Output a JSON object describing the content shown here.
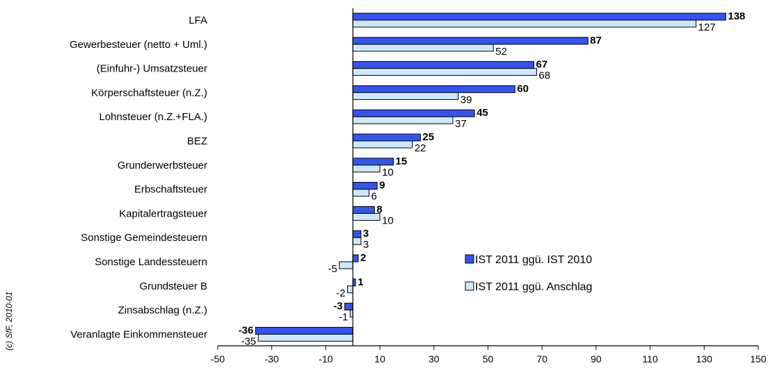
{
  "chart_data": {
    "type": "bar",
    "orientation": "horizontal",
    "categories": [
      "LFA",
      "Gewerbesteuer (netto + Uml.)",
      "(Einfuhr-) Umsatzsteuer",
      "Körperschaftsteuer (n.Z.)",
      "Lohnsteuer (n.Z.+FLA.)",
      "BEZ",
      "Grunderwerbsteuer",
      "Erbschaftsteuer",
      "Kapitalertragsteuer",
      "Sonstige Gemeindesteuern",
      "Sonstige Landessteuern",
      "Grundsteuer B",
      "Zinsabschlag (n.Z.)",
      "Veranlagte Einkommensteuer"
    ],
    "series": [
      {
        "name": "IST 2011 ggü. IST 2010",
        "color": "#3355ee",
        "values": [
          138,
          87,
          67,
          60,
          45,
          25,
          15,
          9,
          8,
          3,
          2,
          1,
          -3,
          -36
        ]
      },
      {
        "name": "IST 2011 ggü. Anschlag",
        "color": "#cce8fb",
        "values": [
          127,
          52,
          68,
          39,
          37,
          22,
          10,
          6,
          10,
          3,
          -5,
          -2,
          -1,
          -35
        ]
      }
    ],
    "xlim": [
      -50,
      150
    ],
    "xticks": [
      -50,
      -30,
      -10,
      10,
      30,
      50,
      70,
      90,
      110,
      130,
      150
    ],
    "legend": "center-right",
    "grid": false
  },
  "watermark": "(c) SfF, 2010-01"
}
